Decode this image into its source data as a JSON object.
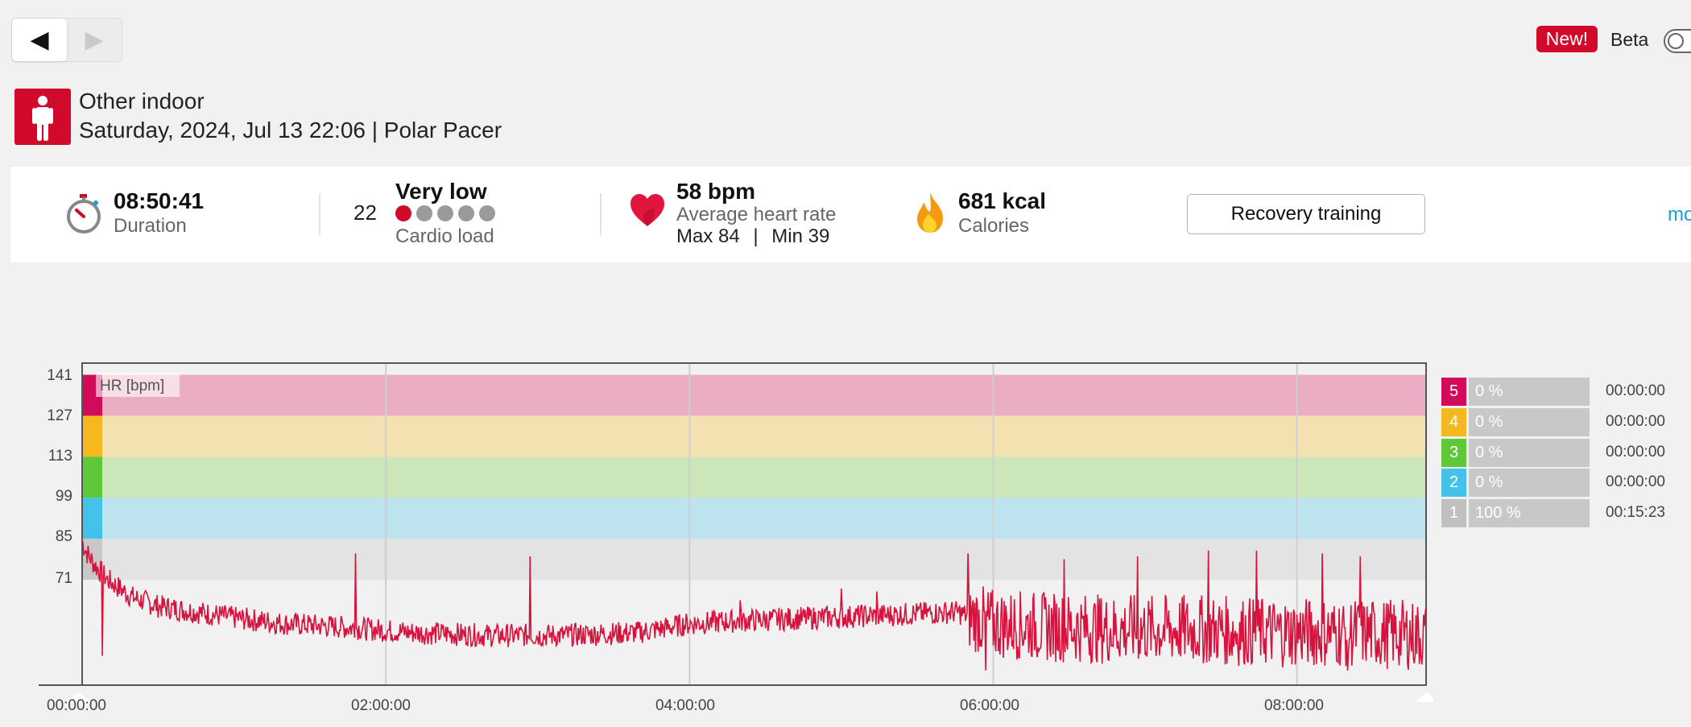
{
  "nav": {
    "back_icon": "◀",
    "forward_icon": "▶"
  },
  "beta": {
    "badge": "New!",
    "label": "Beta"
  },
  "header": {
    "sport": "Other indoor",
    "subtitle": "Saturday, 2024, Jul 13 22:06 | Polar Pacer"
  },
  "summary": {
    "duration_value": "08:50:41",
    "duration_label": "Duration",
    "cardio_value": "22",
    "cardio_level": "Very low",
    "cardio_label": "Cardio load",
    "cardio_dots_active": 1,
    "hr_value": "58 bpm",
    "hr_label": "Average heart rate",
    "hr_max": "Max 84",
    "hr_sep": "|",
    "hr_min": "Min 39",
    "cal_value": "681 kcal",
    "cal_label": "Calories",
    "benefit": "Recovery training",
    "more": "mo"
  },
  "chart_data": {
    "type": "line",
    "series_label": "HR [bpm]",
    "y_ticks": [
      "141",
      "127",
      "113",
      "99",
      "85",
      "71"
    ],
    "x_ticks": [
      "00:00:00",
      "02:00:00",
      "04:00:00",
      "06:00:00",
      "08:00:00"
    ],
    "y_range": [
      35,
      145
    ],
    "x_range_minutes": [
      0,
      531
    ],
    "zones": [
      {
        "zone": "5",
        "from": 127,
        "to": 141,
        "color": "#d10a5a",
        "band": "#ebadc4"
      },
      {
        "zone": "4",
        "from": 113,
        "to": 127,
        "color": "#f5b820",
        "band": "#f4e1b1"
      },
      {
        "zone": "3",
        "from": 99,
        "to": 113,
        "color": "#5fc838",
        "band": "#cbe6b8"
      },
      {
        "zone": "2",
        "from": 85,
        "to": 99,
        "color": "#45c2ea",
        "band": "#bde3ef"
      },
      {
        "zone": "1",
        "from": 71,
        "to": 85,
        "color": "#c8c8c8",
        "band": "#e3e3e3"
      }
    ],
    "hr_series": [
      {
        "t": 0,
        "hr": 84
      },
      {
        "t": 2,
        "hr": 80
      },
      {
        "t": 5,
        "hr": 76
      },
      {
        "t": 10,
        "hr": 71
      },
      {
        "t": 15,
        "hr": 68
      },
      {
        "t": 20,
        "hr": 65
      },
      {
        "t": 30,
        "hr": 62
      },
      {
        "t": 45,
        "hr": 60
      },
      {
        "t": 60,
        "hr": 58
      },
      {
        "t": 80,
        "hr": 56
      },
      {
        "t": 100,
        "hr": 55
      },
      {
        "t": 115,
        "hr": 54
      },
      {
        "t": 130,
        "hr": 53
      },
      {
        "t": 160,
        "hr": 52
      },
      {
        "t": 190,
        "hr": 52
      },
      {
        "t": 220,
        "hr": 53
      },
      {
        "t": 240,
        "hr": 56
      },
      {
        "t": 260,
        "hr": 57
      },
      {
        "t": 290,
        "hr": 58
      },
      {
        "t": 320,
        "hr": 59
      },
      {
        "t": 345,
        "hr": 60
      },
      {
        "t": 360,
        "hr": 56
      },
      {
        "t": 380,
        "hr": 55
      },
      {
        "t": 410,
        "hr": 54
      },
      {
        "t": 440,
        "hr": 54
      },
      {
        "t": 470,
        "hr": 53
      },
      {
        "t": 500,
        "hr": 53
      },
      {
        "t": 531,
        "hr": 52
      }
    ],
    "spikes": [
      {
        "t": 8,
        "hr": 45
      },
      {
        "t": 108,
        "hr": 80
      },
      {
        "t": 177,
        "hr": 79
      },
      {
        "t": 260,
        "hr": 64
      },
      {
        "t": 300,
        "hr": 68
      },
      {
        "t": 314,
        "hr": 67
      },
      {
        "t": 350,
        "hr": 80
      },
      {
        "t": 357,
        "hr": 40
      },
      {
        "t": 388,
        "hr": 78
      },
      {
        "t": 417,
        "hr": 79
      },
      {
        "t": 445,
        "hr": 81
      },
      {
        "t": 464,
        "hr": 81
      },
      {
        "t": 490,
        "hr": 80
      },
      {
        "t": 500,
        "hr": 40
      },
      {
        "t": 505,
        "hr": 79
      }
    ],
    "legend": [
      {
        "zone": "5",
        "percent": "0 %",
        "time": "00:00:00"
      },
      {
        "zone": "4",
        "percent": "0 %",
        "time": "00:00:00"
      },
      {
        "zone": "3",
        "percent": "0 %",
        "time": "00:00:00"
      },
      {
        "zone": "2",
        "percent": "0 %",
        "time": "00:00:00"
      },
      {
        "zone": "1",
        "percent": "100 %",
        "time": "00:15:23"
      }
    ]
  }
}
